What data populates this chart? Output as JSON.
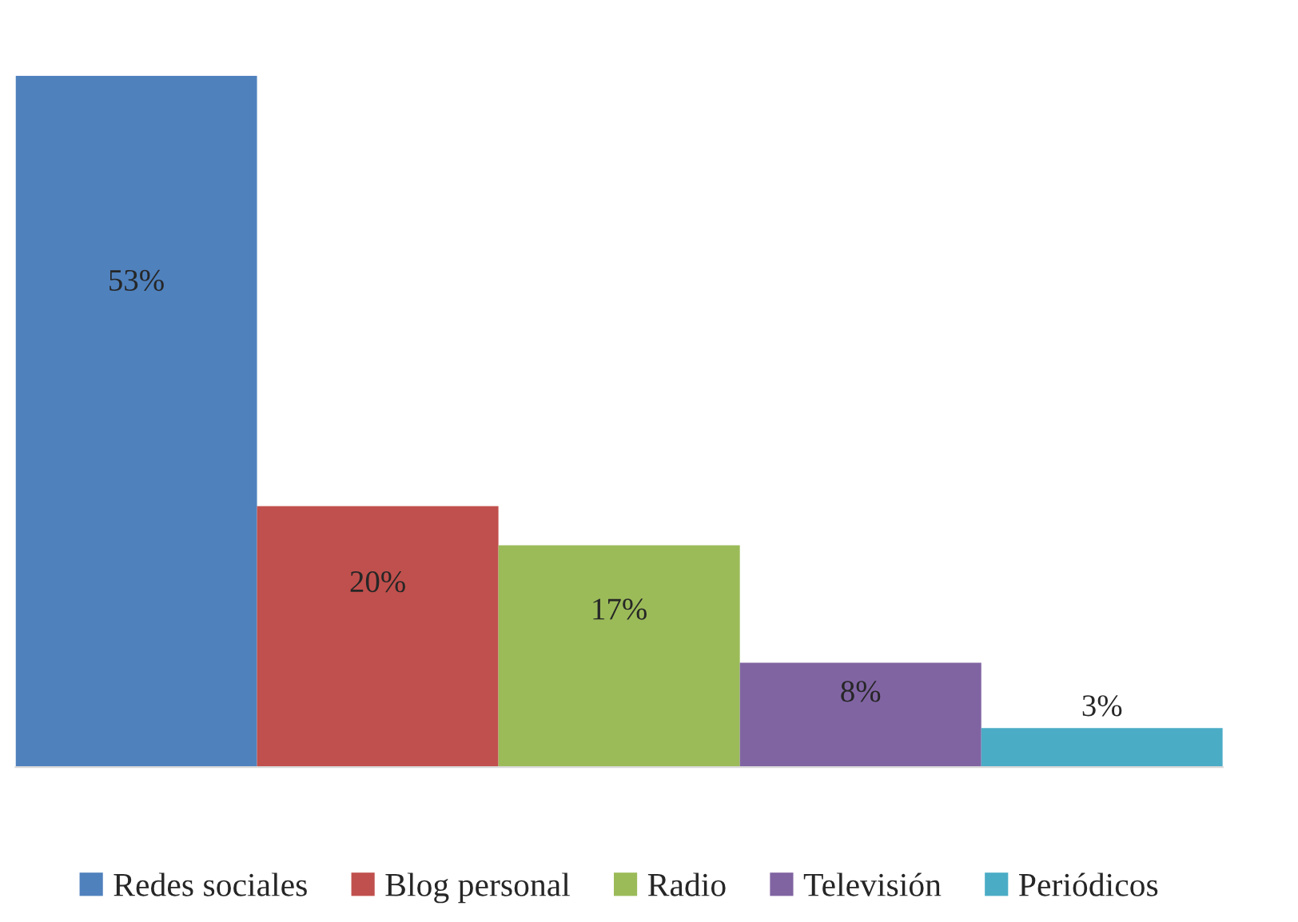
{
  "chart_data": {
    "type": "bar",
    "categories": [
      null
    ],
    "series": [
      {
        "name": "Redes sociales",
        "color": "#4f81bd",
        "values": [
          53
        ],
        "value_labels": [
          "53%"
        ]
      },
      {
        "name": "Blog personal",
        "color": "#c0504d",
        "values": [
          20
        ],
        "value_labels": [
          "20%"
        ]
      },
      {
        "name": "Radio",
        "color": "#9bbb59",
        "values": [
          17
        ],
        "value_labels": [
          "17%"
        ]
      },
      {
        "name": "Televisión",
        "color": "#8064a2",
        "values": [
          8
        ],
        "value_labels": [
          "8%"
        ]
      },
      {
        "name": "Periódicos",
        "color": "#4bacc6",
        "values": [
          3
        ],
        "value_labels": [
          "3%"
        ]
      }
    ],
    "legend": "bottom"
  }
}
